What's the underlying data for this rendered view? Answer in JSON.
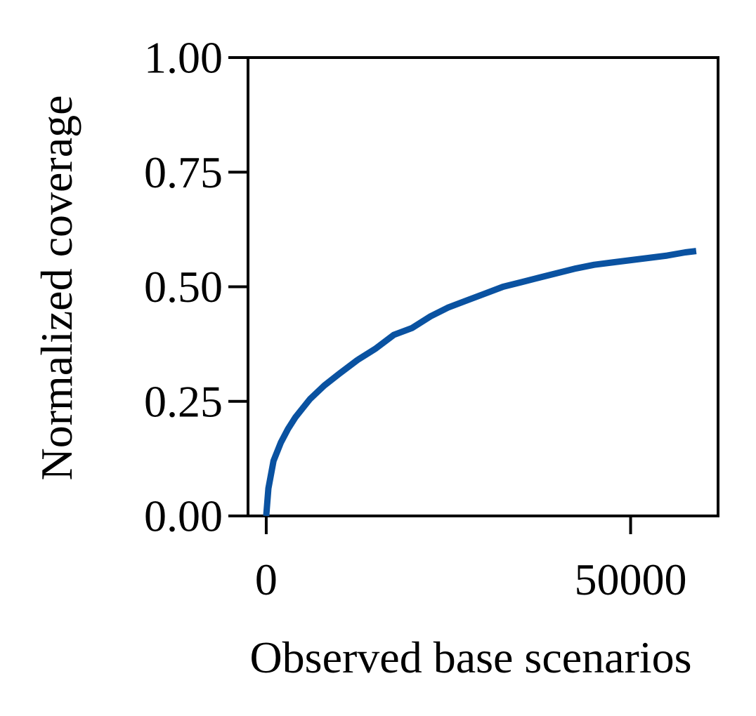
{
  "chart_data": {
    "type": "line",
    "title": "",
    "xlabel": "Observed base scenarios",
    "ylabel": "Normalized coverage",
    "xlim": [
      -2500,
      62000
    ],
    "ylim": [
      0,
      1
    ],
    "grid": false,
    "x_ticks": [
      {
        "value": 0,
        "label": "0"
      },
      {
        "value": 50000,
        "label": "50000"
      }
    ],
    "y_ticks": [
      {
        "value": 0,
        "label": "0.00"
      },
      {
        "value": 0.25,
        "label": "0.25"
      },
      {
        "value": 0.5,
        "label": "0.50"
      },
      {
        "value": 0.75,
        "label": "0.75"
      },
      {
        "value": 1,
        "label": "1.00"
      }
    ],
    "series": [
      {
        "color": "#0a52a1",
        "x": [
          0,
          300,
          1000,
          2000,
          3000,
          4000,
          5000,
          6000,
          8000,
          10000,
          12500,
          15000,
          17500,
          20000,
          22500,
          25000,
          27500,
          30000,
          32500,
          35000,
          37500,
          40000,
          42500,
          45000,
          47500,
          50000,
          52500,
          55000,
          57500,
          59000
        ],
        "y": [
          0.0,
          0.06,
          0.12,
          0.16,
          0.19,
          0.215,
          0.235,
          0.255,
          0.285,
          0.31,
          0.34,
          0.365,
          0.395,
          0.41,
          0.435,
          0.455,
          0.47,
          0.485,
          0.5,
          0.51,
          0.52,
          0.53,
          0.54,
          0.548,
          0.553,
          0.558,
          0.563,
          0.568,
          0.575,
          0.578
        ]
      }
    ]
  }
}
